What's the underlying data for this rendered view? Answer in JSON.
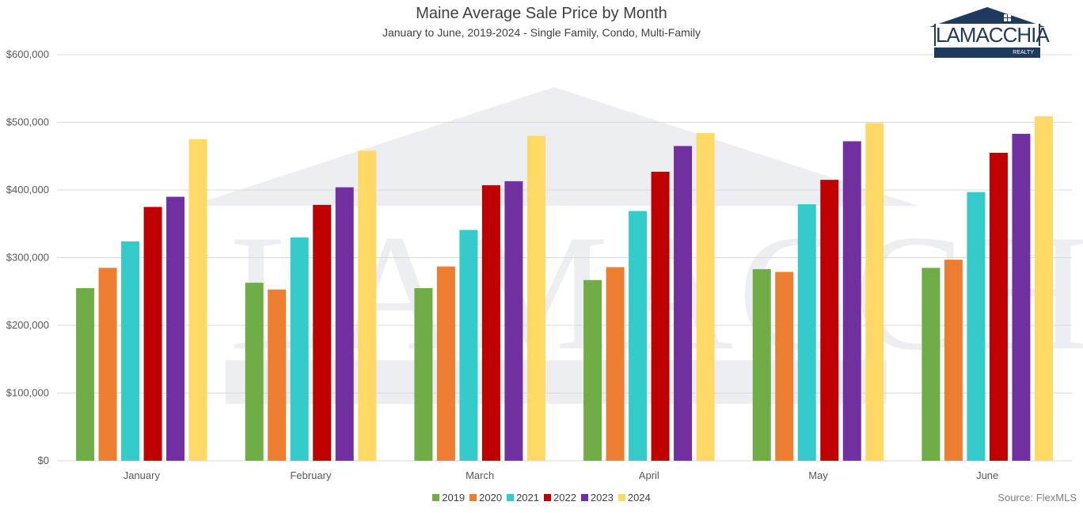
{
  "logo": {
    "wordmark": "LAMACCHIA",
    "sub": "REALTY"
  },
  "watermark_text": "LAMACCHIA",
  "source": "Source: FlexMLS",
  "colors": {
    "2019": "#70AD47",
    "2020": "#ED7D31",
    "2021": "#36CBCB",
    "2022": "#C00000",
    "2023": "#7030A0",
    "2024": "#FFD966",
    "grid": "#d9d9d9",
    "logo_navy": "#1f3a5f"
  },
  "chart_data": {
    "type": "bar",
    "title": "Maine Average Sale Price by Month",
    "subtitle": "January to June, 2019-2024 - Single Family, Condo, Multi-Family",
    "xlabel": "",
    "ylabel": "",
    "ylim": [
      0,
      600000
    ],
    "yticks": [
      "$0",
      "$100,000",
      "$200,000",
      "$300,000",
      "$400,000",
      "$500,000",
      "$600,000"
    ],
    "ytick_values": [
      0,
      100000,
      200000,
      300000,
      400000,
      500000,
      600000
    ],
    "grid": true,
    "legend_position": "bottom",
    "categories": [
      "January",
      "February",
      "March",
      "April",
      "May",
      "June"
    ],
    "series": [
      {
        "name": "2019",
        "values": [
          255000,
          263000,
          255000,
          267000,
          283000,
          285000
        ]
      },
      {
        "name": "2020",
        "values": [
          285000,
          253000,
          287000,
          286000,
          279000,
          297000
        ]
      },
      {
        "name": "2021",
        "values": [
          324000,
          330000,
          341000,
          369000,
          379000,
          397000
        ]
      },
      {
        "name": "2022",
        "values": [
          375000,
          378000,
          407000,
          427000,
          415000,
          455000
        ]
      },
      {
        "name": "2023",
        "values": [
          390000,
          404000,
          413000,
          465000,
          472000,
          483000
        ]
      },
      {
        "name": "2024",
        "values": [
          475000,
          458000,
          480000,
          484000,
          499000,
          509000
        ]
      }
    ]
  }
}
